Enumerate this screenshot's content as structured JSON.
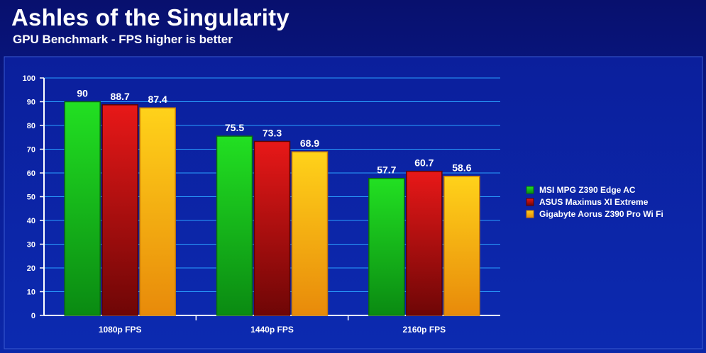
{
  "title": "Ashles of the Singularity",
  "subtitle": "GPU Benchmark - FPS higher is better",
  "colors": {
    "background": "#0a1f9a",
    "grid": "#2aa0ff",
    "series": [
      "#16c416",
      "#c81414",
      "#f2b012"
    ]
  },
  "chart_data": {
    "type": "bar",
    "categories": [
      "1080p FPS",
      "1440p FPS",
      "2160p FPS"
    ],
    "series": [
      {
        "name": "MSI MPG Z390 Edge AC",
        "values": [
          90,
          75.5,
          57.7
        ]
      },
      {
        "name": "ASUS Maximus XI Extreme",
        "values": [
          88.7,
          73.3,
          60.7
        ]
      },
      {
        "name": "Gigabyte Aorus Z390 Pro Wi Fi",
        "values": [
          87.4,
          68.9,
          58.6
        ]
      }
    ],
    "ylim": [
      0,
      100
    ],
    "yticks": [
      0,
      10,
      20,
      30,
      40,
      50,
      60,
      70,
      80,
      90,
      100
    ],
    "grid": true,
    "legend": "right"
  }
}
